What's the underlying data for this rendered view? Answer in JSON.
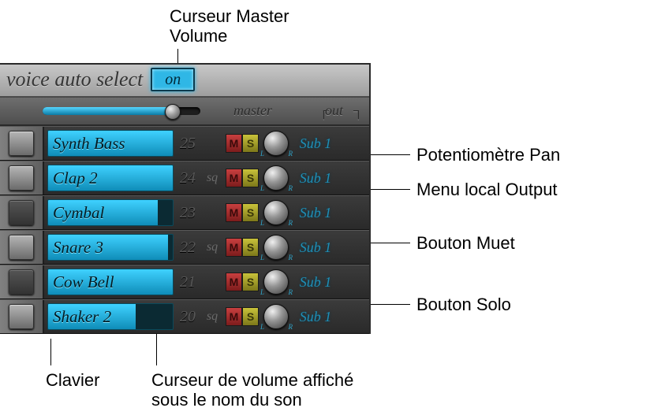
{
  "annotations": {
    "master_volume": "Curseur Master\nVolume",
    "pan_knob": "Potentiomètre Pan",
    "output_menu": "Menu local Output",
    "mute_btn": "Bouton Muet",
    "solo_btn": "Bouton Solo",
    "keyboard": "Clavier",
    "vol_under_name": "Curseur de volume affiché\nsous le nom du son"
  },
  "topbar": {
    "voice_auto_select_label": "voice auto select",
    "on_label": "on"
  },
  "header": {
    "master_label": "master",
    "out_label": "out",
    "master_volume_pct": 82
  },
  "colors": {
    "accent": "#2fb7e6",
    "mute": "#c83f3f",
    "solo": "#c8c23a",
    "out_text": "#1e8fb7",
    "panel_bg_top": "#b8b8b8",
    "panel_bg_bot": "#7a7a7a"
  },
  "tracks": [
    {
      "name": "Synth Bass",
      "num": "25",
      "sq": "",
      "vol_pct": 100,
      "out": "Sub 1",
      "dark_key": false
    },
    {
      "name": "Clap 2",
      "num": "24",
      "sq": "sq",
      "vol_pct": 100,
      "out": "Sub 1",
      "dark_key": false
    },
    {
      "name": "Cymbal",
      "num": "23",
      "sq": "",
      "vol_pct": 88,
      "out": "Sub 1",
      "dark_key": true
    },
    {
      "name": "Snare 3",
      "num": "22",
      "sq": "sq",
      "vol_pct": 96,
      "out": "Sub 1",
      "dark_key": false
    },
    {
      "name": "Cow Bell",
      "num": "21",
      "sq": "",
      "vol_pct": 100,
      "out": "Sub 1",
      "dark_key": true
    },
    {
      "name": "Shaker 2",
      "num": "20",
      "sq": "sq",
      "vol_pct": 70,
      "out": "Sub 1",
      "dark_key": false
    }
  ]
}
